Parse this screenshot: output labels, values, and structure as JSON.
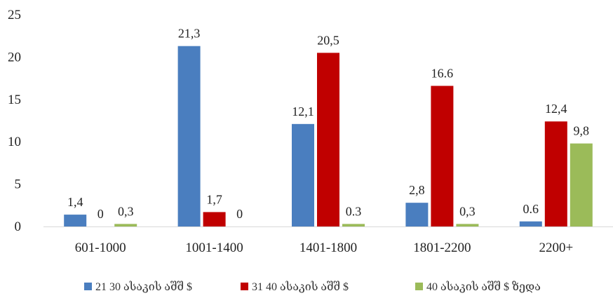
{
  "chart_data": {
    "type": "bar",
    "categories": [
      "601-1000",
      "1001-1400",
      "1401-1800",
      "1801-2200",
      "2200+"
    ],
    "series": [
      {
        "name": "21 30 ასაკის აშშ $",
        "color": "#4a7ebf",
        "values": [
          1.4,
          21.3,
          12.1,
          2.8,
          0.6
        ],
        "labels": [
          "1,4",
          "21,3",
          "12,1",
          "2,8",
          "0.6"
        ]
      },
      {
        "name": "31 40 ასაკის აშშ $",
        "color": "#c00000",
        "values": [
          0,
          1.7,
          20.5,
          16.6,
          12.4
        ],
        "labels": [
          "0",
          "1,7",
          "20,5",
          "16.6",
          "12,4"
        ]
      },
      {
        "name": "40 ასაკის აშშ $ ზედა",
        "color": "#9bbb59",
        "values": [
          0.3,
          0,
          0.3,
          0.3,
          9.8
        ],
        "labels": [
          "0,3",
          "0",
          "0.3",
          "0,3",
          "9,8"
        ]
      }
    ],
    "yticks": [
      "0",
      "5",
      "10",
      "15",
      "20",
      "25"
    ],
    "ylim": [
      0,
      25
    ],
    "grid": false,
    "legend_position": "bottom"
  }
}
